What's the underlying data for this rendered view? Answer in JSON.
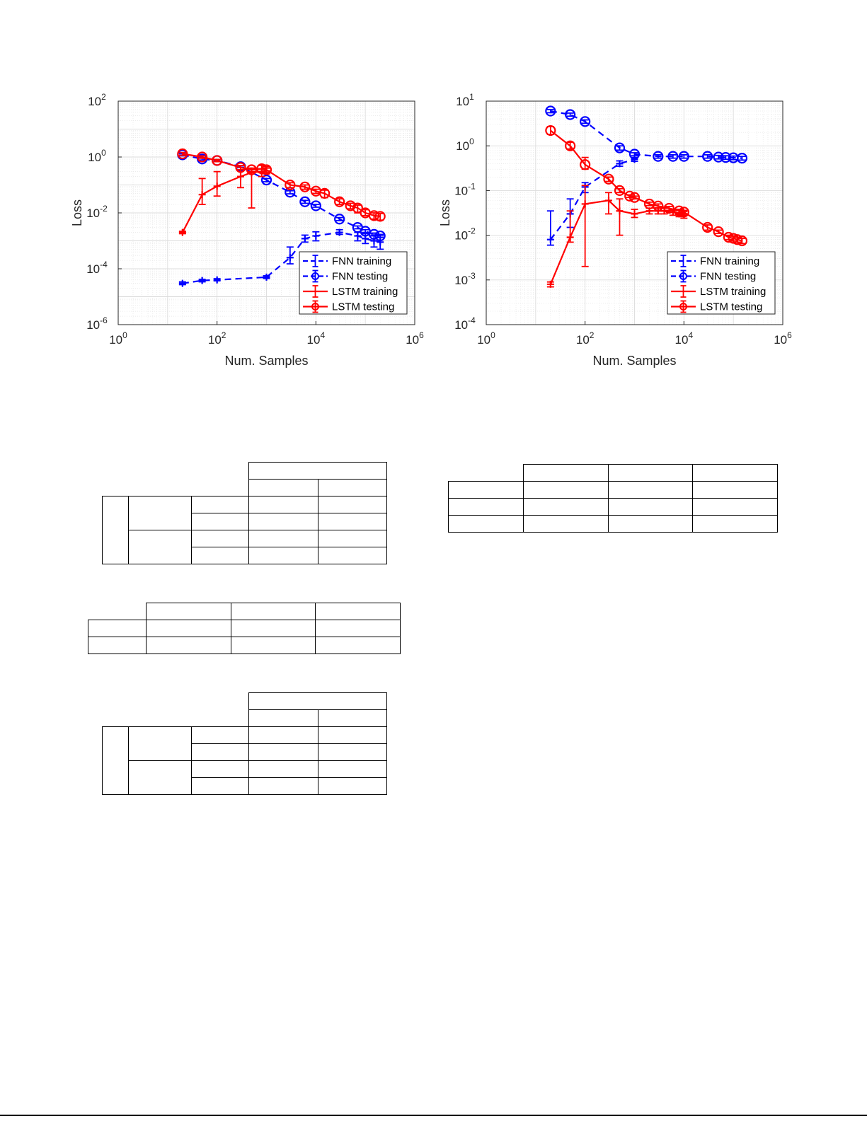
{
  "chart_data": [
    {
      "type": "line",
      "xscale": "log",
      "yscale": "log",
      "xlim": [
        1,
        1000000
      ],
      "ylim": [
        1e-06,
        100
      ],
      "xticks": [
        1,
        100,
        10000,
        1000000
      ],
      "yticks": [
        1e-06,
        0.0001,
        0.01,
        1,
        100
      ],
      "xtick_labels": [
        [
          "10",
          "0"
        ],
        [
          "10",
          "2"
        ],
        [
          "10",
          "4"
        ],
        [
          "10",
          "6"
        ]
      ],
      "ytick_labels": [
        [
          "10",
          "-6"
        ],
        [
          "10",
          "-4"
        ],
        [
          "10",
          "-2"
        ],
        [
          "10",
          "0"
        ],
        [
          "10",
          "2"
        ]
      ],
      "xlabel": "Num. Samples",
      "ylabel": "Loss",
      "grid": true,
      "legend": "bottom-right",
      "series": [
        {
          "name": "FNN training",
          "color": "#0000ff",
          "style": "dashed",
          "marker": "plus",
          "x": [
            20,
            50,
            100,
            1000,
            3000,
            6000,
            10000,
            30000,
            70000,
            100000,
            150000,
            200000
          ],
          "y": [
            3e-05,
            3.8e-05,
            4e-05,
            5e-05,
            0.00025,
            0.0012,
            0.0015,
            0.002,
            0.0015,
            0.0012,
            0.001,
            0.0009
          ],
          "err_low": [
            2.7e-05,
            3.4e-05,
            3.7e-05,
            4.5e-05,
            0.00015,
            0.0009,
            0.001,
            0.0017,
            0.001,
            0.0008,
            0.0006,
            0.0005
          ],
          "err_high": [
            3.4e-05,
            4.2e-05,
            4.4e-05,
            5.6e-05,
            0.0006,
            0.0016,
            0.0021,
            0.0025,
            0.002,
            0.0018,
            0.0016,
            0.0015
          ]
        },
        {
          "name": "FNN testing",
          "color": "#0000ff",
          "style": "dashed",
          "marker": "circle",
          "x": [
            20,
            50,
            100,
            300,
            1000,
            3000,
            6000,
            10000,
            30000,
            70000,
            100000,
            150000,
            200000
          ],
          "y": [
            1.2,
            0.85,
            0.75,
            0.45,
            0.15,
            0.055,
            0.025,
            0.018,
            0.006,
            0.003,
            0.0022,
            0.0017,
            0.0015
          ],
          "err_low": [
            1.1,
            0.78,
            0.7,
            0.42,
            0.13,
            0.048,
            0.022,
            0.016,
            0.0053,
            0.0027,
            0.002,
            0.0015,
            0.0013
          ],
          "err_high": [
            1.3,
            0.92,
            0.8,
            0.48,
            0.17,
            0.062,
            0.028,
            0.02,
            0.0068,
            0.0034,
            0.0025,
            0.0019,
            0.0017
          ]
        },
        {
          "name": "LSTM training",
          "color": "#ff0000",
          "style": "solid",
          "marker": "plus",
          "x": [
            20,
            50,
            100,
            300,
            500,
            800,
            1000
          ],
          "y": [
            0.002,
            0.045,
            0.09,
            0.2,
            0.28,
            0.3,
            0.32
          ],
          "err_low": [
            0.0018,
            0.02,
            0.04,
            0.08,
            0.015,
            0.2,
            0.25
          ],
          "err_high": [
            0.0022,
            0.17,
            0.3,
            0.35,
            0.4,
            0.38,
            0.4
          ]
        },
        {
          "name": "LSTM testing",
          "color": "#ff0000",
          "style": "solid",
          "marker": "circle",
          "x": [
            20,
            50,
            100,
            300,
            500,
            800,
            1000,
            3000,
            6000,
            10000,
            15000,
            30000,
            50000,
            70000,
            100000,
            150000,
            200000
          ],
          "y": [
            1.3,
            1.0,
            0.75,
            0.42,
            0.35,
            0.38,
            0.35,
            0.1,
            0.085,
            0.06,
            0.05,
            0.025,
            0.018,
            0.015,
            0.01,
            0.008,
            0.0075
          ],
          "err_low": [
            1.15,
            0.9,
            0.68,
            0.35,
            0.3,
            0.3,
            0.28,
            0.08,
            0.07,
            0.05,
            0.035,
            0.02,
            0.014,
            0.01,
            0.008,
            0.006,
            0.0055
          ],
          "err_high": [
            1.45,
            1.1,
            0.82,
            0.5,
            0.4,
            0.5,
            0.45,
            0.12,
            0.1,
            0.07,
            0.065,
            0.032,
            0.022,
            0.019,
            0.013,
            0.01,
            0.0095
          ]
        }
      ]
    },
    {
      "type": "line",
      "xscale": "log",
      "yscale": "log",
      "xlim": [
        1,
        1000000
      ],
      "ylim": [
        0.0001,
        10
      ],
      "xticks": [
        1,
        100,
        10000,
        1000000
      ],
      "yticks": [
        0.0001,
        0.001,
        0.01,
        0.1,
        1,
        10
      ],
      "xtick_labels": [
        [
          "10",
          "0"
        ],
        [
          "10",
          "2"
        ],
        [
          "10",
          "4"
        ],
        [
          "10",
          "6"
        ]
      ],
      "ytick_labels": [
        [
          "10",
          "-4"
        ],
        [
          "10",
          "-3"
        ],
        [
          "10",
          "-2"
        ],
        [
          "10",
          "-1"
        ],
        [
          "10",
          "0"
        ],
        [
          "10",
          "1"
        ]
      ],
      "xlabel": "Num. Samples",
      "ylabel": "Loss",
      "grid": true,
      "legend": "bottom-right",
      "series": [
        {
          "name": "FNN training",
          "color": "#0000ff",
          "style": "dashed",
          "marker": "plus",
          "x": [
            20,
            50,
            100,
            500,
            1000
          ],
          "y": [
            0.008,
            0.03,
            0.12,
            0.4,
            0.5
          ],
          "err_low": [
            0.006,
            0.015,
            0.09,
            0.35,
            0.45
          ],
          "err_high": [
            0.035,
            0.065,
            0.15,
            0.46,
            0.55
          ]
        },
        {
          "name": "FNN testing",
          "color": "#0000ff",
          "style": "dashed",
          "marker": "circle",
          "x": [
            20,
            50,
            100,
            500,
            1000,
            3000,
            6000,
            10000,
            30000,
            50000,
            70000,
            100000,
            150000
          ],
          "y": [
            6.0,
            5.0,
            3.5,
            0.9,
            0.65,
            0.58,
            0.58,
            0.58,
            0.58,
            0.56,
            0.55,
            0.54,
            0.53
          ],
          "err_low": [
            5.5,
            4.6,
            3.2,
            0.8,
            0.6,
            0.53,
            0.53,
            0.53,
            0.53,
            0.51,
            0.5,
            0.49,
            0.48
          ],
          "err_high": [
            6.5,
            5.4,
            3.8,
            1.0,
            0.7,
            0.63,
            0.63,
            0.63,
            0.63,
            0.61,
            0.6,
            0.59,
            0.58
          ]
        },
        {
          "name": "LSTM training",
          "color": "#ff0000",
          "style": "solid",
          "marker": "plus",
          "x": [
            20,
            50,
            100,
            300,
            500,
            1000,
            2000,
            3000,
            4000,
            6000,
            8000,
            10000
          ],
          "y": [
            0.0008,
            0.009,
            0.05,
            0.06,
            0.035,
            0.03,
            0.035,
            0.035,
            0.035,
            0.033,
            0.03,
            0.028
          ],
          "err_low": [
            0.0007,
            0.007,
            0.002,
            0.03,
            0.01,
            0.025,
            0.03,
            0.03,
            0.03,
            0.028,
            0.026,
            0.024
          ],
          "err_high": [
            0.0009,
            0.035,
            0.13,
            0.09,
            0.065,
            0.038,
            0.04,
            0.04,
            0.04,
            0.038,
            0.036,
            0.034
          ]
        },
        {
          "name": "LSTM testing",
          "color": "#ff0000",
          "style": "solid",
          "marker": "circle",
          "x": [
            20,
            50,
            100,
            300,
            500,
            800,
            1000,
            2000,
            3000,
            5000,
            8000,
            10000,
            30000,
            50000,
            80000,
            100000,
            120000,
            150000
          ],
          "y": [
            2.2,
            1.0,
            0.38,
            0.18,
            0.1,
            0.075,
            0.07,
            0.05,
            0.045,
            0.04,
            0.035,
            0.033,
            0.015,
            0.012,
            0.009,
            0.0085,
            0.008,
            0.0075
          ],
          "err_low": [
            1.8,
            0.85,
            0.3,
            0.16,
            0.09,
            0.07,
            0.065,
            0.046,
            0.041,
            0.036,
            0.032,
            0.03,
            0.013,
            0.011,
            0.008,
            0.0075,
            0.007,
            0.0065
          ],
          "err_high": [
            2.7,
            1.2,
            0.55,
            0.2,
            0.11,
            0.08,
            0.075,
            0.055,
            0.05,
            0.044,
            0.038,
            0.036,
            0.017,
            0.013,
            0.01,
            0.0095,
            0.009,
            0.0085
          ]
        }
      ]
    }
  ],
  "tables": {
    "merged_a": {
      "rows": 6,
      "cols": 5
    },
    "grid_a": {
      "rows": 3,
      "cols": 4
    },
    "merged_b": {
      "rows": 6,
      "cols": 5
    },
    "grid_b": {
      "rows": 4,
      "cols": 4
    }
  }
}
